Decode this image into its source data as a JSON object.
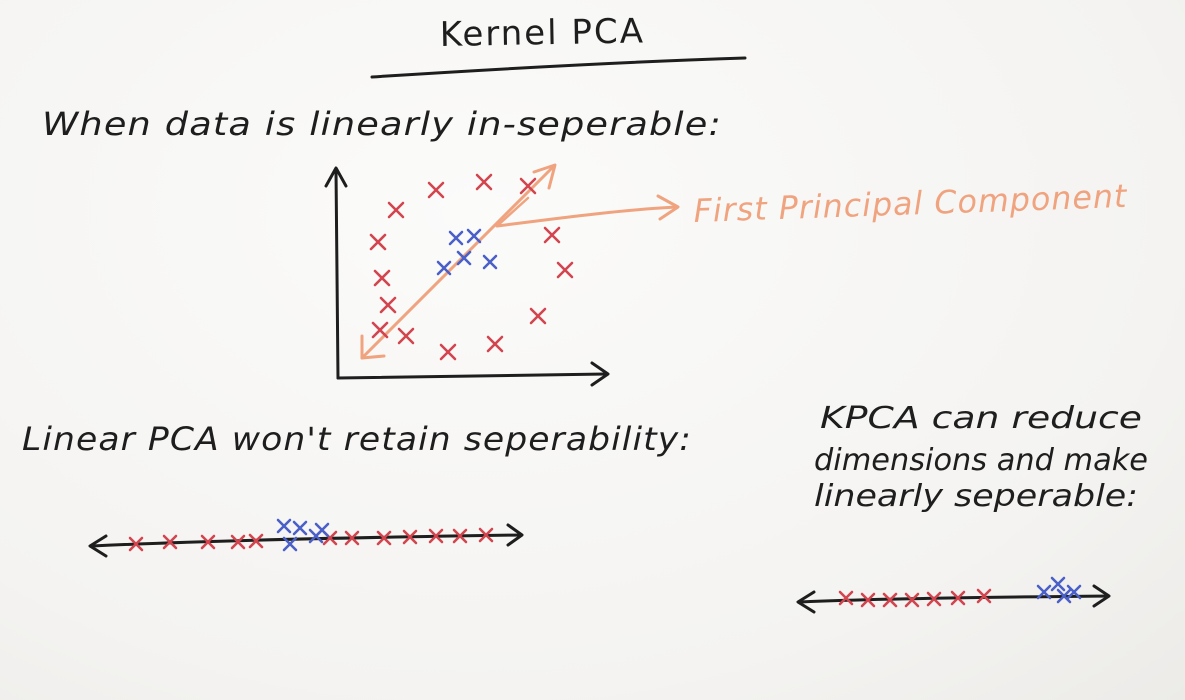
{
  "title": "Kernel PCA",
  "heading_1": "When data is linearly in-seperable:",
  "pc_label": "First Principal Component",
  "heading_2": "Linear PCA won't retain seperability:",
  "kpca_note": [
    "KPCA can reduce",
    "dimensions and make",
    "linearly seperable:"
  ],
  "colors": {
    "ink": "#1e1e1e",
    "red": "#d2454f",
    "blue": "#4a5fc7",
    "pc": "#f0a37f"
  }
}
